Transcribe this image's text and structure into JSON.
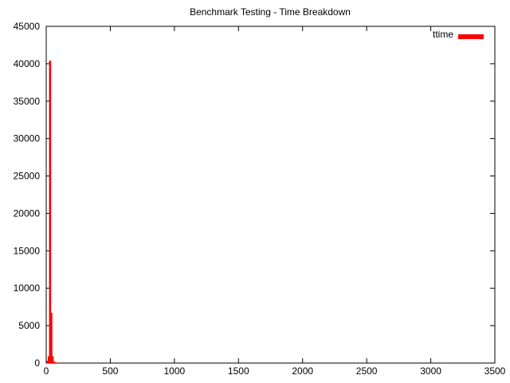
{
  "chart_data": {
    "type": "bar",
    "title": "Benchmark Testing - Time Breakdown",
    "xlabel": "",
    "ylabel": "",
    "xlim": [
      0,
      3500
    ],
    "ylim": [
      0,
      45000
    ],
    "xticks": [
      0,
      500,
      1000,
      1500,
      2000,
      2500,
      3000,
      3500
    ],
    "yticks": [
      0,
      5000,
      10000,
      15000,
      20000,
      25000,
      30000,
      35000,
      40000,
      45000
    ],
    "grid": false,
    "legend_position": "top-right",
    "series": [
      {
        "name": "ttime",
        "color": "#ff0000",
        "x": [
          10,
          20,
          30,
          40,
          50,
          60,
          70,
          80,
          90
        ],
        "values": [
          300,
          900,
          40400,
          6700,
          900,
          200,
          100,
          80,
          50
        ]
      }
    ]
  }
}
